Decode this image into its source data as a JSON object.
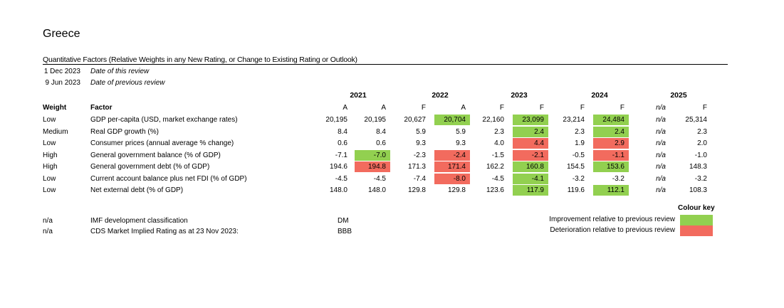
{
  "title": "Greece",
  "subtitle": "Quantitative Factors (Relative Weights in any New Rating, or Change to Existing Rating or Outlook)",
  "review": {
    "current_date": "1 Dec 2023",
    "current_label": "Date of this review",
    "previous_date": "9 Jun 2023",
    "previous_label": "Date of previous review"
  },
  "headers": {
    "weight": "Weight",
    "factor": "Factor",
    "years": [
      "2021",
      "2022",
      "2023",
      "2024",
      "2025"
    ],
    "columns": [
      "A",
      "A",
      "F",
      "A",
      "F",
      "F",
      "F",
      "F",
      "n/a",
      "F"
    ]
  },
  "rows": [
    {
      "weight": "Low",
      "factor": "GDP per-capita (USD, market exchange rates)",
      "values": [
        "20,195",
        "20,195",
        "20,627",
        "20,704",
        "22,160",
        "23,099",
        "23,214",
        "24,484",
        "n/a",
        "25,314"
      ],
      "highlight": [
        null,
        null,
        null,
        "green",
        null,
        "green",
        null,
        "green",
        null,
        null
      ]
    },
    {
      "weight": "Medium",
      "factor": "Real GDP growth (%)",
      "values": [
        "8.4",
        "8.4",
        "5.9",
        "5.9",
        "2.3",
        "2.4",
        "2.3",
        "2.4",
        "n/a",
        "2.3"
      ],
      "highlight": [
        null,
        null,
        null,
        null,
        null,
        "green",
        null,
        "green",
        null,
        null
      ]
    },
    {
      "weight": "Low",
      "factor": "Consumer prices (annual average % change)",
      "values": [
        "0.6",
        "0.6",
        "9.3",
        "9.3",
        "4.0",
        "4.4",
        "1.9",
        "2.9",
        "n/a",
        "2.0"
      ],
      "highlight": [
        null,
        null,
        null,
        null,
        null,
        "red",
        null,
        "red",
        null,
        null
      ]
    },
    {
      "weight": "High",
      "factor": "General government balance (% of GDP)",
      "values": [
        "-7.1",
        "-7.0",
        "-2.3",
        "-2.4",
        "-1.5",
        "-2.1",
        "-0.5",
        "-1.1",
        "n/a",
        "-1.0"
      ],
      "highlight": [
        null,
        "green",
        null,
        "red",
        null,
        "red",
        null,
        "red",
        null,
        null
      ]
    },
    {
      "weight": "High",
      "factor": "General government debt (% of GDP)",
      "values": [
        "194.6",
        "194.8",
        "171.3",
        "171.4",
        "162.2",
        "160.8",
        "154.5",
        "153.6",
        "n/a",
        "148.3"
      ],
      "highlight": [
        null,
        "red",
        null,
        "red",
        null,
        "green",
        null,
        "green",
        null,
        null
      ]
    },
    {
      "weight": "Low",
      "factor": "Current account balance plus net FDI (% of GDP)",
      "values": [
        "-4.5",
        "-4.5",
        "-7.4",
        "-8.0",
        "-4.5",
        "-4.1",
        "-3.2",
        "-3.2",
        "n/a",
        "-3.2"
      ],
      "highlight": [
        null,
        null,
        null,
        "red",
        null,
        "green",
        null,
        null,
        null,
        null
      ]
    },
    {
      "weight": "Low",
      "factor": "Net external debt (% of GDP)",
      "values": [
        "148.0",
        "148.0",
        "129.8",
        "129.8",
        "123.6",
        "117.9",
        "119.6",
        "112.1",
        "n/a",
        "108.3"
      ],
      "highlight": [
        null,
        null,
        null,
        null,
        null,
        "green",
        null,
        "green",
        null,
        null
      ]
    }
  ],
  "extra": [
    {
      "weight": "n/a",
      "factor": "IMF development classification",
      "value": "DM"
    },
    {
      "weight": "n/a",
      "factor": "CDS Market Implied Rating as at 23 Nov 2023:",
      "value": "BBB"
    }
  ],
  "colour_key": {
    "title": "Colour key",
    "improvement": "Improvement relative to previous review",
    "deterioration": "Deterioration relative to previous review",
    "green": "#92d050",
    "red": "#f26b5e"
  }
}
